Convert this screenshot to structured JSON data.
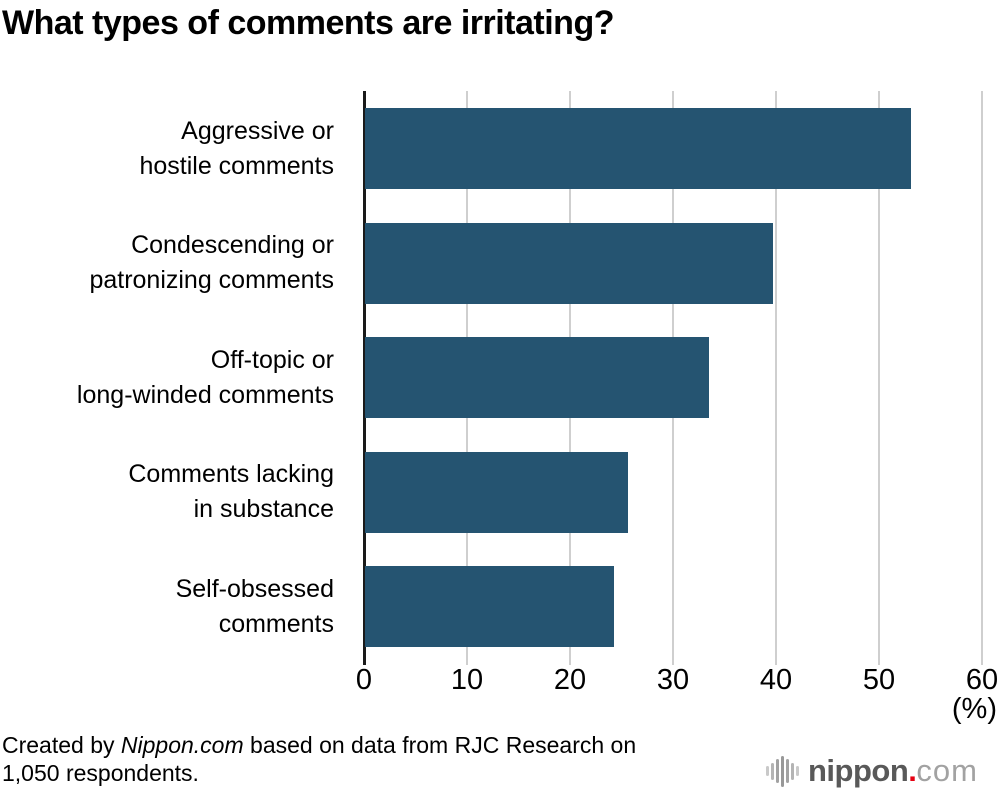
{
  "page": {
    "title": "What types of comments are irritating?"
  },
  "chart_data": {
    "type": "bar",
    "orientation": "horizontal",
    "title": "What types of comments are irritating?",
    "categories": [
      "Aggressive or\nhostile comments",
      "Condescending or\npatronizing comments",
      "Off-topic or\nlong-winded comments",
      "Comments lacking\nin substance",
      "Self-obsessed\ncomments"
    ],
    "values": [
      53.0,
      39.6,
      33.4,
      25.5,
      24.2
    ],
    "x_ticks": [
      0,
      10,
      20,
      30,
      40,
      50,
      60
    ],
    "xlim": [
      0,
      60
    ],
    "unit_label": "(%)",
    "grid": true,
    "legend": false,
    "bar_color": "#255471",
    "gridline_color": "#cfcfcf",
    "axis_color": "#1a1a1a"
  },
  "footer": {
    "prefix": "Created by ",
    "brand": "Nippon.com",
    "suffix": " based on data from RJC Research on",
    "line2": "1,050 respondents."
  },
  "logo": {
    "icon": "soundwave-bars-icon",
    "name": "nippon",
    "dot": ".",
    "tld": "com",
    "dot_color": "#e60012"
  }
}
